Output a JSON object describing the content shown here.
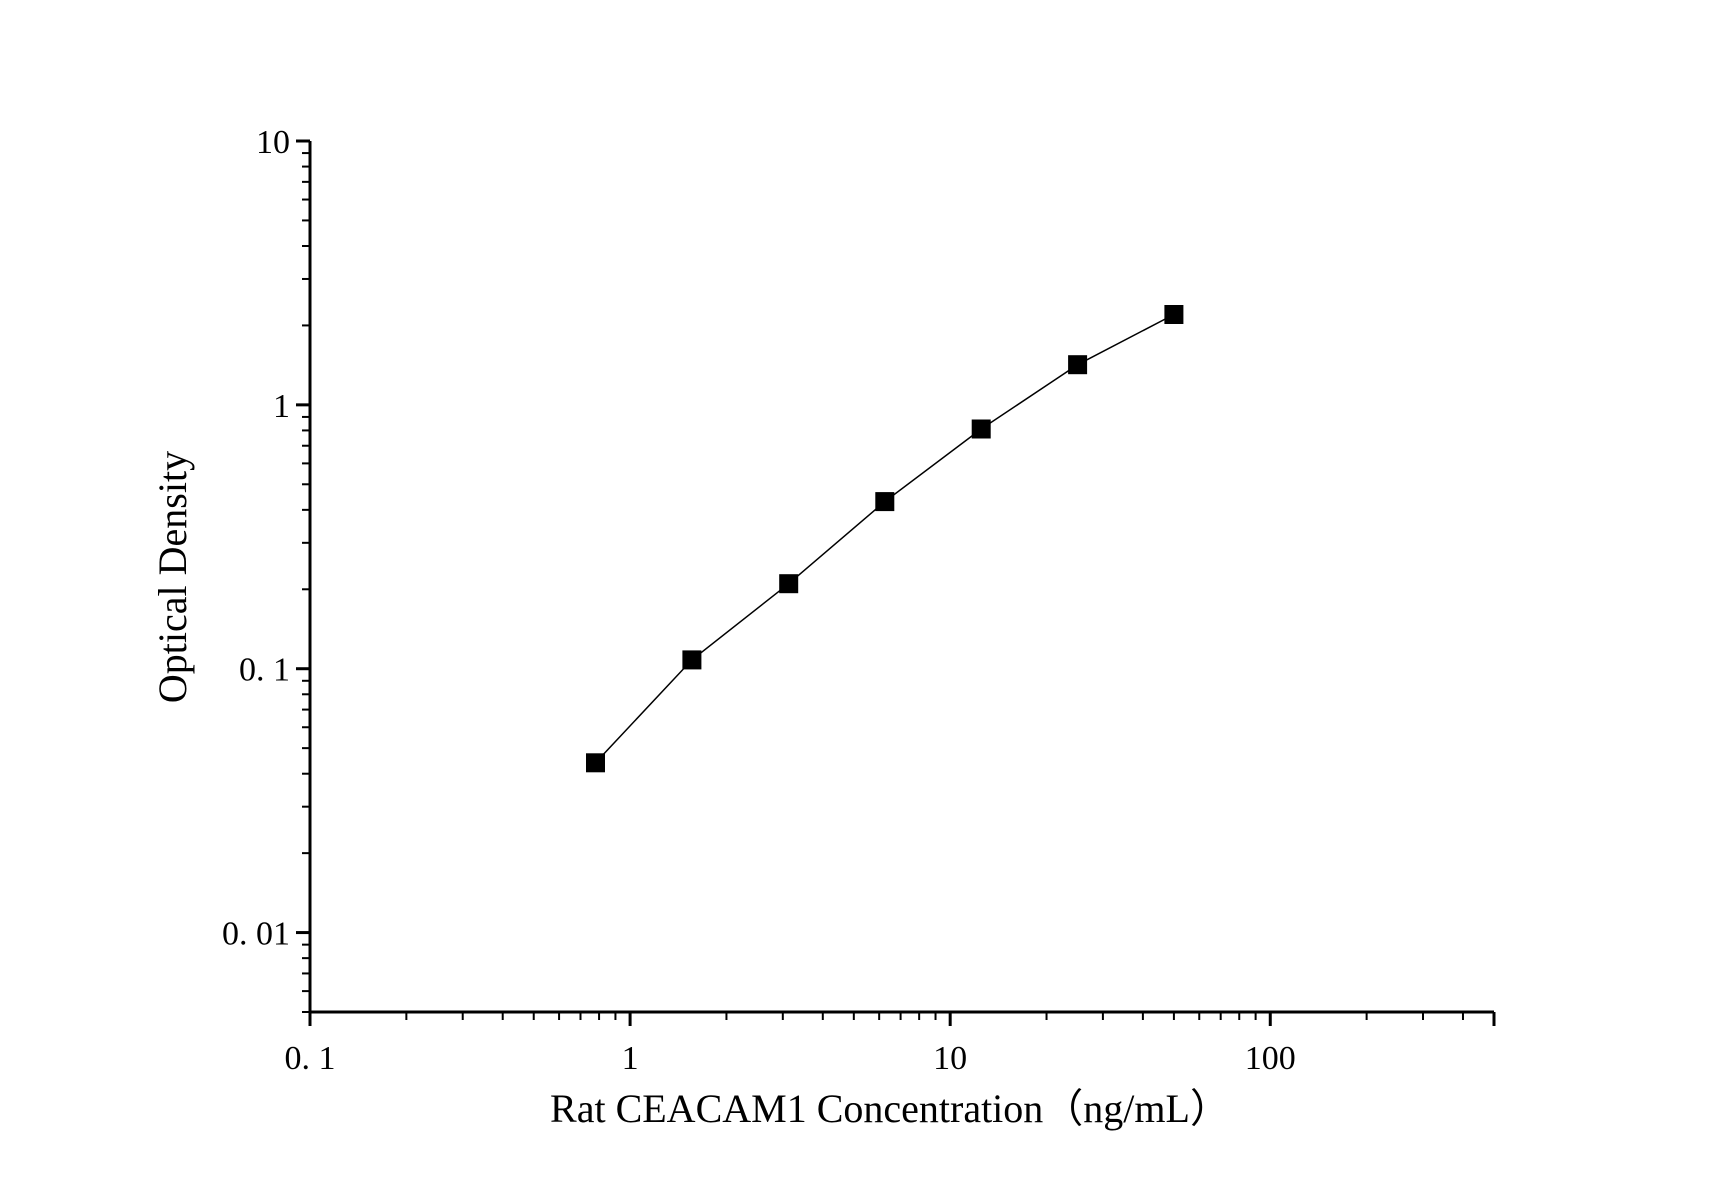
{
  "chart_data": {
    "type": "scatter",
    "title": "",
    "xlabel": "Rat CEACAM1 Concentration（ng/mL）",
    "ylabel": "Optical Density",
    "x_scale": "log",
    "y_scale": "log",
    "xlim": [
      0.1,
      500
    ],
    "ylim": [
      0.005,
      10
    ],
    "x_ticks": [
      {
        "value": 0.1,
        "label": "0. 1"
      },
      {
        "value": 1,
        "label": "1"
      },
      {
        "value": 10,
        "label": "10"
      },
      {
        "value": 100,
        "label": "100"
      }
    ],
    "y_ticks": [
      {
        "value": 0.01,
        "label": "0. 01"
      },
      {
        "value": 0.1,
        "label": "0. 1"
      },
      {
        "value": 1,
        "label": "1"
      },
      {
        "value": 10,
        "label": "10"
      }
    ],
    "grid": false,
    "legend": false,
    "marker": "square",
    "connect_points": true,
    "series": [
      {
        "x": [
          0.78,
          1.56,
          3.13,
          6.25,
          12.5,
          25,
          50
        ],
        "y": [
          0.044,
          0.108,
          0.21,
          0.43,
          0.81,
          1.42,
          2.2
        ]
      }
    ],
    "colors": {
      "marker": "#000000",
      "line": "#000000",
      "axis": "#000000"
    }
  }
}
